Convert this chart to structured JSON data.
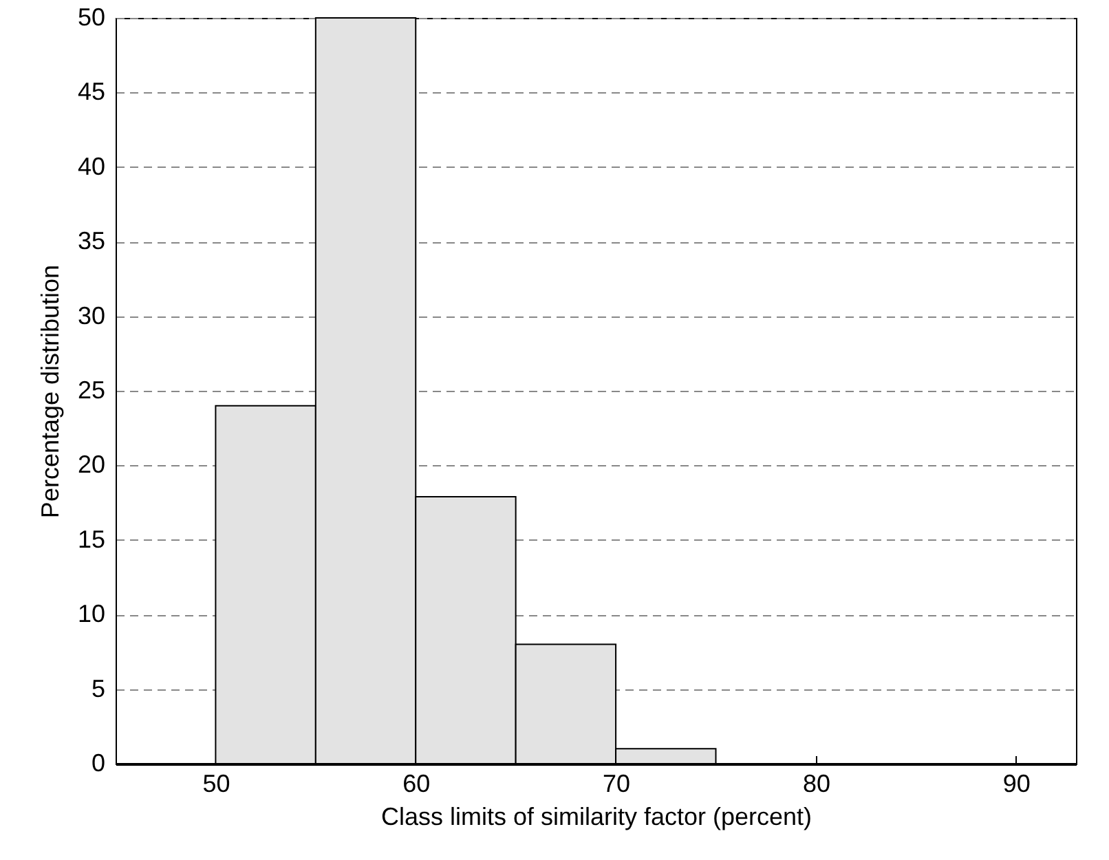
{
  "chart_data": {
    "type": "histogram",
    "xlabel": "Class limits of similarity factor (percent)",
    "ylabel": "Percentage distribution",
    "bins": [
      50,
      55,
      60,
      65,
      70,
      75
    ],
    "values": [
      24,
      50,
      17.9,
      8,
      1
    ],
    "color": "#e3e3e3",
    "xlim": [
      45,
      93
    ],
    "xticks": [
      50,
      60,
      70,
      80,
      90
    ],
    "ylim": [
      0,
      50
    ],
    "yticks": [
      0,
      5,
      10,
      15,
      20,
      25,
      30,
      35,
      40,
      45,
      50
    ],
    "grid": "y"
  }
}
